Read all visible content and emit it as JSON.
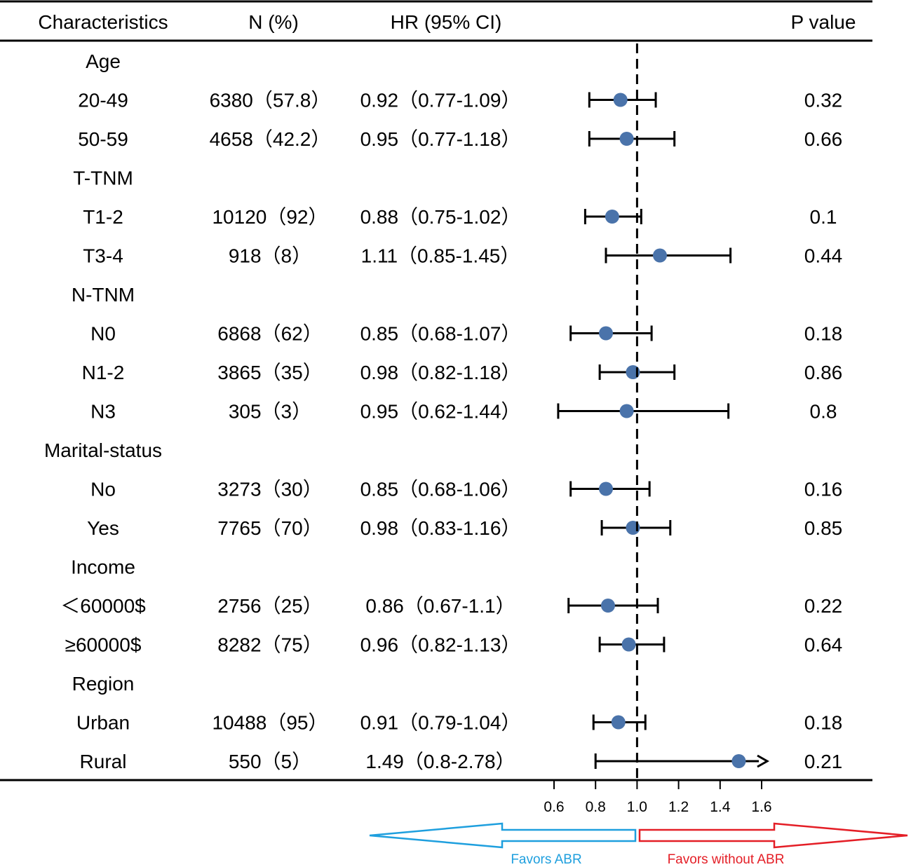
{
  "chart_data": {
    "type": "forest",
    "columns": [
      "Characteristics",
      "N (%)",
      "HR (95% CI)",
      "P value"
    ],
    "rows": [
      {
        "type": "group",
        "label": "Age"
      },
      {
        "type": "item",
        "label": "20-49",
        "n": "6380（57.8）",
        "hr_text": "0.92（0.77-1.09）",
        "p": "0.32",
        "hr": 0.92,
        "lo": 0.77,
        "hi": 1.09
      },
      {
        "type": "item",
        "label": "50-59",
        "n": "4658（42.2）",
        "hr_text": "0.95（0.77-1.18）",
        "p": "0.66",
        "hr": 0.95,
        "lo": 0.77,
        "hi": 1.18
      },
      {
        "type": "group",
        "label": "T-TNM"
      },
      {
        "type": "item",
        "label": "T1-2",
        "n": "10120（92）",
        "hr_text": "0.88（0.75-1.02）",
        "p": "0.1",
        "hr": 0.88,
        "lo": 0.75,
        "hi": 1.02
      },
      {
        "type": "item",
        "label": "T3-4",
        "n": "918（8）",
        "hr_text": "1.11（0.85-1.45）",
        "p": "0.44",
        "hr": 1.11,
        "lo": 0.85,
        "hi": 1.45
      },
      {
        "type": "group",
        "label": "N-TNM"
      },
      {
        "type": "item",
        "label": "N0",
        "n": "6868（62）",
        "hr_text": "0.85（0.68-1.07）",
        "p": "0.18",
        "hr": 0.85,
        "lo": 0.68,
        "hi": 1.07
      },
      {
        "type": "item",
        "label": "N1-2",
        "n": "3865（35）",
        "hr_text": "0.98（0.82-1.18）",
        "p": "0.86",
        "hr": 0.98,
        "lo": 0.82,
        "hi": 1.18
      },
      {
        "type": "item",
        "label": "N3",
        "n": "305（3）",
        "hr_text": "0.95（0.62-1.44）",
        "p": "0.8",
        "hr": 0.95,
        "lo": 0.62,
        "hi": 1.44
      },
      {
        "type": "group",
        "label": "Marital-status"
      },
      {
        "type": "item",
        "label": "No",
        "n": "3273（30）",
        "hr_text": "0.85（0.68-1.06）",
        "p": "0.16",
        "hr": 0.85,
        "lo": 0.68,
        "hi": 1.06
      },
      {
        "type": "item",
        "label": "Yes",
        "n": "7765（70）",
        "hr_text": "0.98（0.83-1.16）",
        "p": "0.85",
        "hr": 0.98,
        "lo": 0.83,
        "hi": 1.16
      },
      {
        "type": "group",
        "label": "Income"
      },
      {
        "type": "item",
        "label": "＜60000$",
        "n": "2756（25）",
        "hr_text": "0.86（0.67-1.1）",
        "p": "0.22",
        "hr": 0.86,
        "lo": 0.67,
        "hi": 1.1
      },
      {
        "type": "item",
        "label": "≥60000$",
        "n": "8282（75）",
        "hr_text": "0.96（0.82-1.13）",
        "p": "0.64",
        "hr": 0.96,
        "lo": 0.82,
        "hi": 1.13
      },
      {
        "type": "group",
        "label": "Region"
      },
      {
        "type": "item",
        "label": "Urban",
        "n": "10488（95）",
        "hr_text": "0.91（0.79-1.04）",
        "p": "0.18",
        "hr": 0.91,
        "lo": 0.79,
        "hi": 1.04
      },
      {
        "type": "item",
        "label": "Rural",
        "n": "550（5）",
        "hr_text": "1.49（0.8-2.78）",
        "p": "0.21",
        "hr": 1.49,
        "lo": 0.8,
        "hi": 2.78,
        "arrow": true
      }
    ],
    "x_ticks": [
      "0.6",
      "0.8",
      "1.0",
      "1.2",
      "1.4",
      "1.6"
    ],
    "xlim": [
      0.6,
      1.6
    ],
    "reference_line": 1.0,
    "favors_left": "Favors ABR",
    "favors_right": "Favors without ABR",
    "colors": {
      "point": "#4a73aa",
      "left_arrow": "#1e9fde",
      "right_arrow": "#e41e26"
    }
  }
}
